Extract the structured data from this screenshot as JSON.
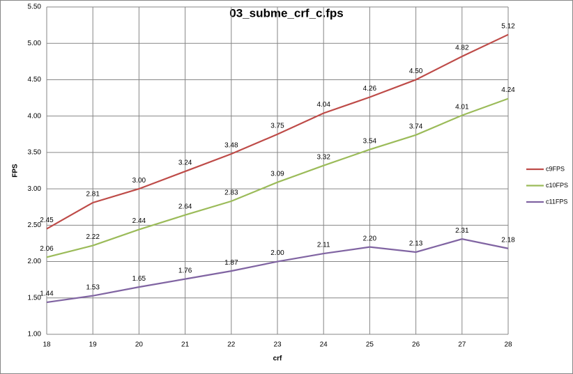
{
  "chart_data": {
    "type": "line",
    "title": "03_subme_crf_c.fps",
    "x_label": "crf",
    "y_label": "FPS",
    "x": [
      18,
      19,
      20,
      21,
      22,
      23,
      24,
      25,
      26,
      27,
      28
    ],
    "series": [
      {
        "name": "c9FPS",
        "color": "#be4b48",
        "values": [
          2.45,
          2.81,
          3.0,
          3.24,
          3.48,
          3.75,
          4.04,
          4.26,
          4.5,
          4.82,
          5.12
        ],
        "value_labels": [
          "2.45",
          "2.81",
          "3.00",
          "3.24",
          "3.48",
          "3.75",
          "4.04",
          "4.26",
          "4.50",
          "4.82",
          "5.12"
        ]
      },
      {
        "name": "c10FPS",
        "color": "#9bbb59",
        "values": [
          2.06,
          2.22,
          2.44,
          2.64,
          2.83,
          3.09,
          3.32,
          3.54,
          3.74,
          4.01,
          4.24
        ],
        "value_labels": [
          "2.06",
          "2.22",
          "2.44",
          "2.64",
          "2.83",
          "3.09",
          "3.32",
          "3.54",
          "3.74",
          "4.01",
          "4.24"
        ]
      },
      {
        "name": "c11FPS",
        "color": "#8064a2",
        "values": [
          1.44,
          1.53,
          1.65,
          1.76,
          1.87,
          2.0,
          2.11,
          2.2,
          2.13,
          2.31,
          2.18
        ],
        "value_labels": [
          "1.44",
          "1.53",
          "1.65",
          "1.76",
          "1.87",
          "2.00",
          "2.11",
          "2.20",
          "2.13",
          "2.31",
          "2.18"
        ]
      }
    ],
    "xlim": [
      18,
      28
    ],
    "xticks": [
      18,
      19,
      20,
      21,
      22,
      23,
      24,
      25,
      26,
      27,
      28
    ],
    "ylim": [
      1,
      5.5
    ],
    "yticks": [
      {
        "value": 1,
        "label": "1.00"
      },
      {
        "value": 1.5,
        "label": "1.50"
      },
      {
        "value": 2,
        "label": "2.00"
      },
      {
        "value": 2.5,
        "label": "2.50"
      },
      {
        "value": 3,
        "label": "3.00"
      },
      {
        "value": 3.5,
        "label": "3.50"
      },
      {
        "value": 4,
        "label": "4.00"
      },
      {
        "value": 4.5,
        "label": "4.50"
      },
      {
        "value": 5,
        "label": "5.00"
      },
      {
        "value": 5.5,
        "label": "5.50"
      }
    ],
    "grid": true,
    "legend": "right"
  }
}
